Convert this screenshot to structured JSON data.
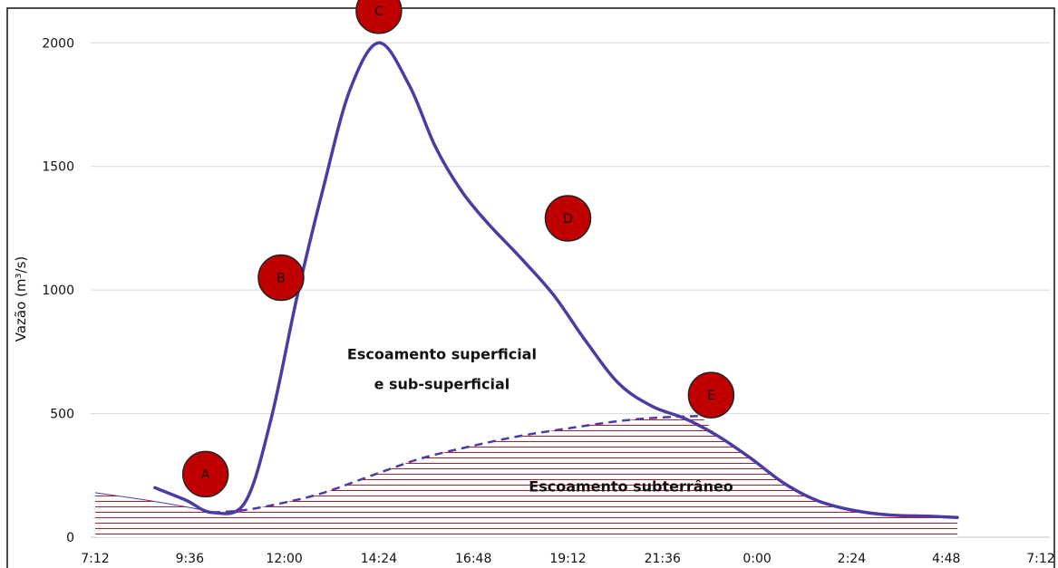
{
  "chart_data": {
    "type": "line",
    "ylabel": "Vazão (m³/s)",
    "xlabel": "",
    "y_ticks": [
      "0",
      "500",
      "1000",
      "1500",
      "2000"
    ],
    "x_ticks": [
      "7:12",
      "9:36",
      "12:00",
      "14:24",
      "16:48",
      "19:12",
      "21:36",
      "0:00",
      "2:24",
      "4:48",
      "7:12"
    ],
    "ylim": [
      0,
      2100
    ],
    "grid": true,
    "colors": {
      "hydrograph": "#4b3ca5",
      "baseflow_hatch": "#c8141e",
      "marker_fill": "#c00000",
      "grid": "#d9d9d9"
    },
    "series": [
      {
        "type": "line",
        "x": [
          "8:43",
          "9:30",
          "10:10",
          "11:00",
          "11:40",
          "12:20",
          "13:00",
          "13:40",
          "14:24",
          "15:10",
          "15:50",
          "16:30",
          "17:10",
          "18:00",
          "18:50",
          "19:40",
          "20:30",
          "21:20",
          "22:10",
          "23:00",
          "23:50",
          "0:40",
          "1:30",
          "2:24",
          "3:20",
          "4:20",
          "5:05"
        ],
        "y": [
          200,
          150,
          100,
          140,
          480,
          980,
          1420,
          1810,
          2000,
          1830,
          1580,
          1400,
          1270,
          1130,
          980,
          790,
          620,
          530,
          480,
          410,
          320,
          220,
          150,
          110,
          90,
          85,
          80
        ]
      },
      {
        "type": "area",
        "style": "dashed",
        "x": [
          "7:12",
          "8:30",
          "9:36",
          "10:10",
          "11:00",
          "12:00",
          "13:00",
          "14:24",
          "15:30",
          "16:48",
          "18:00",
          "19:12",
          "20:30",
          "21:36",
          "22:30",
          "23:00",
          "23:50",
          "0:40",
          "1:30",
          "2:24",
          "3:20",
          "4:20",
          "5:05"
        ],
        "y": [
          180,
          150,
          120,
          100,
          110,
          140,
          180,
          260,
          320,
          370,
          410,
          440,
          470,
          485,
          490,
          410,
          320,
          220,
          150,
          110,
          90,
          85,
          80
        ]
      }
    ],
    "annotations": [
      {
        "text": "Escoamento superficial",
        "x": "16:00",
        "y": 720
      },
      {
        "text": "e sub-superficial",
        "x": "16:00",
        "y": 600
      },
      {
        "text": "Escoamento subterrâneo",
        "x": "20:48",
        "y": 185
      }
    ],
    "markers": [
      {
        "label": "A",
        "x": "10:00",
        "y": 255
      },
      {
        "label": "B",
        "x": "11:55",
        "y": 1050
      },
      {
        "label": "C",
        "x": "14:24",
        "y": 2130
      },
      {
        "label": "D",
        "x": "19:12",
        "y": 1290
      },
      {
        "label": "E",
        "x": "22:50",
        "y": 575
      }
    ]
  }
}
